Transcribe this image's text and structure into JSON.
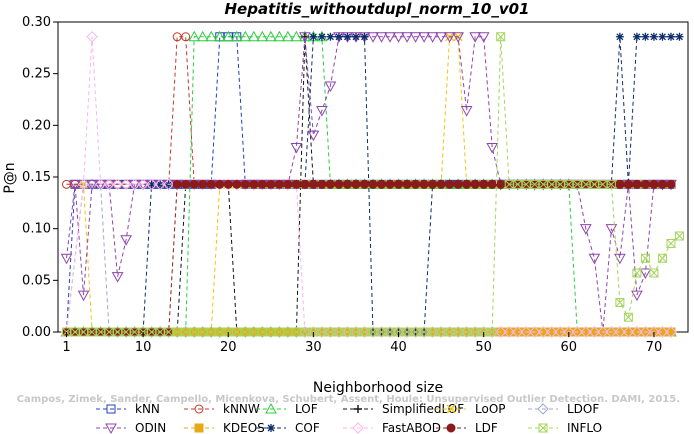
{
  "chart_data": {
    "type": "line",
    "title": "Hepatitis_withoutdupl_norm_10_v01",
    "xlabel": "Neighborhood size",
    "ylabel": "P@n",
    "xlim": [
      0,
      74
    ],
    "ylim": [
      0,
      0.3
    ],
    "xticks": [
      "1",
      "10",
      "20",
      "30",
      "40",
      "50",
      "60",
      "70"
    ],
    "yticks": [
      "0.00",
      "0.05",
      "0.10",
      "0.15",
      "0.20",
      "0.25",
      "0.30"
    ],
    "grid": false,
    "legend_position": "bottom",
    "watermark": "Campos, Zimek, Sander, Campello, Micenkova, Schubert, Assent, Houle: Unsupervised Outlier Detection. DAMI, 2015.",
    "series": [
      {
        "name": "kNN",
        "color": "#1f3fbf",
        "marker": "square",
        "segments": [
          [
            1,
            0
          ],
          [
            2,
            0.1429
          ],
          [
            18,
            0.1429
          ],
          [
            19,
            0.2857
          ],
          [
            21,
            0.2857
          ],
          [
            22,
            0.1429
          ],
          [
            72,
            0.1429
          ]
        ]
      },
      {
        "name": "kNNW",
        "color": "#c0392b",
        "marker": "circle",
        "segments": [
          [
            1,
            0.1429
          ],
          [
            13,
            0.1429
          ],
          [
            14,
            0.2857
          ],
          [
            15,
            0.2857
          ],
          [
            16,
            0.1429
          ],
          [
            72,
            0.1429
          ]
        ]
      },
      {
        "name": "LOF",
        "color": "#2ecc40",
        "marker": "triangle-up",
        "segments": [
          [
            1,
            0
          ],
          [
            15,
            0
          ],
          [
            16,
            0.2857
          ],
          [
            31,
            0.2857
          ],
          [
            32,
            0.1429
          ],
          [
            60,
            0.1429
          ],
          [
            61,
            0
          ],
          [
            72,
            0
          ]
        ]
      },
      {
        "name": "SimplifiedLOF",
        "color": "#111111",
        "marker": "plus",
        "segments": [
          [
            1,
            0
          ],
          [
            14,
            0
          ],
          [
            15,
            0.1429
          ],
          [
            20,
            0.1429
          ],
          [
            21,
            0
          ],
          [
            28,
            0
          ],
          [
            29,
            0.2857
          ],
          [
            30,
            0.1429
          ],
          [
            72,
            0.1429
          ]
        ]
      },
      {
        "name": "LoOP",
        "color": "#f1c40f",
        "marker": "x",
        "segments": [
          [
            1,
            0
          ],
          [
            3,
            0.1429
          ],
          [
            4,
            0
          ],
          [
            18,
            0
          ],
          [
            19,
            0.1429
          ],
          [
            45,
            0.1429
          ],
          [
            46,
            0.2857
          ],
          [
            47,
            0.2857
          ],
          [
            48,
            0.1429
          ],
          [
            72,
            0.1429
          ]
        ]
      },
      {
        "name": "LDOF",
        "color": "#9ea7d6",
        "marker": "diamond",
        "segments": [
          [
            1,
            0
          ],
          [
            3,
            0.1429
          ],
          [
            5,
            0.1429
          ],
          [
            6,
            0
          ],
          [
            72,
            0
          ]
        ]
      },
      {
        "name": "ODIN",
        "color": "#8e44ad",
        "marker": "triangle-down",
        "segments": [
          [
            1,
            0.0714
          ],
          [
            2,
            0.1429
          ],
          [
            3,
            0.0357
          ],
          [
            4,
            0.1429
          ],
          [
            6,
            0.1429
          ],
          [
            7,
            0.0536
          ],
          [
            8,
            0.0893
          ],
          [
            9,
            0.1429
          ],
          [
            27,
            0.1429
          ],
          [
            28,
            0.1786
          ],
          [
            29,
            0.2857
          ],
          [
            30,
            0.1905
          ],
          [
            31,
            0.2143
          ],
          [
            32,
            0.2381
          ],
          [
            33,
            0.2857
          ],
          [
            47,
            0.2857
          ],
          [
            48,
            0.2143
          ],
          [
            49,
            0.2857
          ],
          [
            50,
            0.2857
          ],
          [
            51,
            0.1786
          ],
          [
            52,
            0.1429
          ],
          [
            61,
            0.1429
          ],
          [
            62,
            0.1
          ],
          [
            63,
            0.0714
          ],
          [
            64,
            0
          ],
          [
            65,
            0.1
          ],
          [
            66,
            0.0714
          ],
          [
            67,
            0.1429
          ],
          [
            68,
            0.0357
          ],
          [
            69,
            0.0571
          ],
          [
            70,
            0.1429
          ],
          [
            72,
            0.1429
          ]
        ]
      },
      {
        "name": "KDEOS",
        "color": "#e6a817",
        "marker": "square-filled",
        "segments": [
          [
            1,
            0
          ],
          [
            72,
            0
          ]
        ]
      },
      {
        "name": "COF",
        "color": "#0b2d6b",
        "marker": "star",
        "segments": [
          [
            1,
            0
          ],
          [
            10,
            0
          ],
          [
            11,
            0.1429
          ],
          [
            29,
            0.1429
          ],
          [
            30,
            0.2857
          ],
          [
            36,
            0.2857
          ],
          [
            37,
            0
          ],
          [
            43,
            0
          ],
          [
            44,
            0.1429
          ],
          [
            65,
            0.1429
          ],
          [
            66,
            0.2857
          ],
          [
            67,
            0.1429
          ],
          [
            68,
            0.2857
          ],
          [
            73,
            0.2857
          ]
        ]
      },
      {
        "name": "FastABOD",
        "color": "#f5b8f0",
        "marker": "diamond",
        "segments": [
          [
            1,
            0
          ],
          [
            3,
            0.1429
          ],
          [
            4,
            0.2857
          ],
          [
            5,
            0.1429
          ],
          [
            28,
            0.1429
          ],
          [
            29,
            0
          ],
          [
            72,
            0
          ]
        ]
      },
      {
        "name": "LDF",
        "color": "#8b1a1a",
        "marker": "circle-filled",
        "segments": [
          [
            1,
            0
          ],
          [
            13,
            0
          ],
          [
            14,
            0.1429
          ],
          [
            72,
            0.1429
          ]
        ]
      },
      {
        "name": "INFLO",
        "color": "#a4d65e",
        "marker": "square-x",
        "segments": [
          [
            1,
            0
          ],
          [
            51,
            0
          ],
          [
            52,
            0.2857
          ],
          [
            53,
            0.1429
          ],
          [
            65,
            0.1429
          ],
          [
            66,
            0.0286
          ],
          [
            67,
            0.0143
          ],
          [
            68,
            0.0571
          ],
          [
            69,
            0.0714
          ],
          [
            70,
            0.0571
          ],
          [
            71,
            0.0714
          ],
          [
            72,
            0.0857
          ],
          [
            73,
            0.0929
          ]
        ]
      }
    ]
  }
}
